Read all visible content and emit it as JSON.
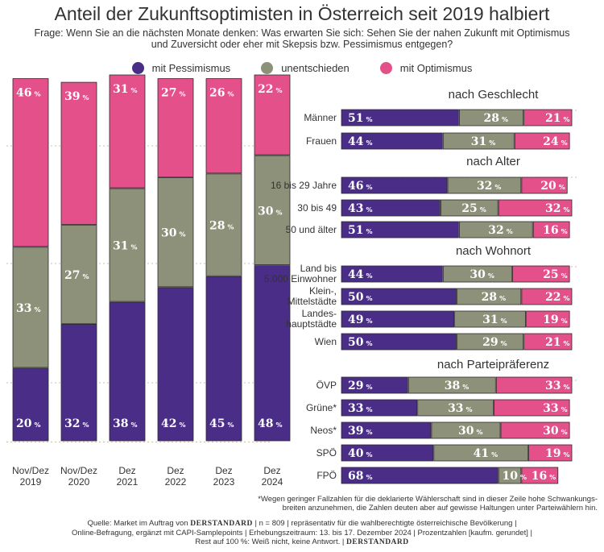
{
  "title": "Anteil der Zukunftsoptimisten in Österreich seit 2019 halbiert",
  "question": {
    "label": "Frage:",
    "line1": "Wenn Sie an die nächsten Monate denken: Was erwarten Sie sich: Sehen Sie der nahen Zukunft mit Optimismus",
    "line2": "und Zuversicht oder eher mit Skepsis bzw. Pessimismus entgegen?"
  },
  "legend": [
    {
      "label": "mit Pessimismus",
      "color": "#4a2d86"
    },
    {
      "label": "unentschieden",
      "color": "#8d917a"
    },
    {
      "label": "mit Optimismus",
      "color": "#e3508a"
    }
  ],
  "percent_sign": "%",
  "chart_data": [
    {
      "type": "bar",
      "stacked": true,
      "orientation": "vertical",
      "categories": [
        "Nov/Dez 2019",
        "Nov/Dez 2020",
        "Dez 2021",
        "Dez 2022",
        "Dez 2023",
        "Dez 2024"
      ],
      "category_lines": [
        [
          "Nov/Dez",
          "2019"
        ],
        [
          "Nov/Dez",
          "2020"
        ],
        [
          "Dez",
          "2021"
        ],
        [
          "Dez",
          "2022"
        ],
        [
          "Dez",
          "2023"
        ],
        [
          "Dez",
          "2024"
        ]
      ],
      "series": [
        {
          "name": "mit Pessimismus",
          "values": [
            20,
            32,
            38,
            42,
            45,
            48
          ]
        },
        {
          "name": "unentschieden",
          "values": [
            33,
            27,
            31,
            30,
            28,
            30
          ]
        },
        {
          "name": "mit Optimismus",
          "values": [
            46,
            39,
            31,
            27,
            26,
            22
          ]
        }
      ],
      "grid": true
    },
    {
      "type": "bar",
      "stacked": true,
      "orientation": "horizontal",
      "groups": [
        {
          "title": "nach Geschlecht",
          "rows": [
            {
              "label": [
                "Männer"
              ],
              "values": [
                51,
                28,
                21
              ]
            },
            {
              "label": [
                "Frauen"
              ],
              "values": [
                44,
                31,
                24
              ]
            }
          ]
        },
        {
          "title": "nach Alter",
          "rows": [
            {
              "label": [
                "16 bis 29 Jahre"
              ],
              "values": [
                46,
                32,
                20
              ]
            },
            {
              "label": [
                "30 bis 49"
              ],
              "values": [
                43,
                25,
                32
              ]
            },
            {
              "label": [
                "50 und älter"
              ],
              "values": [
                51,
                32,
                16
              ]
            }
          ]
        },
        {
          "title": "nach Wohnort",
          "rows": [
            {
              "label": [
                "Land bis",
                "5.000 Einwohner"
              ],
              "values": [
                44,
                30,
                25
              ]
            },
            {
              "label": [
                "Klein-,",
                "Mittelstädte"
              ],
              "values": [
                50,
                28,
                22
              ]
            },
            {
              "label": [
                "Landes-",
                "hauptstädte"
              ],
              "values": [
                49,
                31,
                19
              ]
            },
            {
              "label": [
                "Wien"
              ],
              "values": [
                50,
                29,
                21
              ]
            }
          ]
        },
        {
          "title": "nach Parteipräferenz",
          "rows": [
            {
              "label": [
                "ÖVP"
              ],
              "values": [
                29,
                38,
                33
              ]
            },
            {
              "label": [
                "Grüne*"
              ],
              "values": [
                33,
                33,
                33
              ]
            },
            {
              "label": [
                "Neos*"
              ],
              "values": [
                39,
                30,
                30
              ]
            },
            {
              "label": [
                "SPÖ"
              ],
              "values": [
                40,
                41,
                19
              ]
            },
            {
              "label": [
                "FPÖ"
              ],
              "values": [
                68,
                10,
                16
              ]
            }
          ]
        }
      ]
    }
  ],
  "footnote": {
    "line1": "*Wegen geringer Fallzahlen für die deklarierte Wählerschaft sind in dieser Zeile hohe Schwankungs-",
    "line2": "breiten anzunehmen, die Zahlen deuten aber auf gewisse Haltungen unter Parteiwählern hin."
  },
  "source": {
    "part1": "Quelle: Market im Auftrag von",
    "brand": "DERSTANDARD",
    "part2": "| n = 809 | repräsentativ für die wahlberechtigte österreichische Bevölkerung |",
    "line2": "Online-Befragung, ergänzt mit CAPI-Samplepoints | Erhebungszeitraum: 13. bis 17. Dezember 2024 | Prozentzahlen [kaufm. gerundet] |",
    "line3": "Rest auf 100 %: Weiß nicht, keine Antwort. |"
  }
}
